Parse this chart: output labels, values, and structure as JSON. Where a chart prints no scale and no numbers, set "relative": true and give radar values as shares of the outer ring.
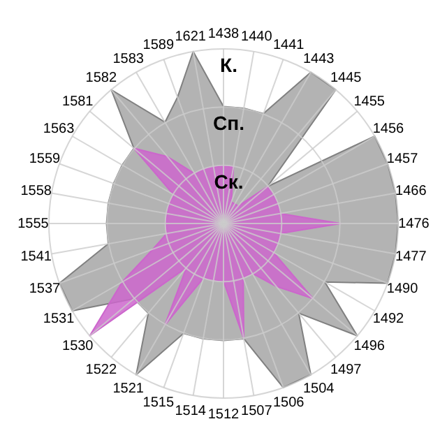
{
  "chart_data": {
    "type": "radar",
    "relative": true,
    "categories": [
      "1438",
      "1440",
      "1441",
      "1443",
      "1445",
      "1455",
      "1456",
      "1457",
      "1466",
      "1476",
      "1477",
      "1490",
      "1492",
      "1496",
      "1497",
      "1504",
      "1506",
      "1507",
      "1512",
      "1514",
      "1515",
      "1521",
      "1522",
      "1530",
      "1531",
      "1537",
      "1541",
      "1555",
      "1558",
      "1559",
      "1563",
      "1581",
      "1582",
      "1583",
      "1589",
      "1621"
    ],
    "series": [
      {
        "color": "#b3b3b3",
        "values": [
          0.67,
          0.67,
          0.67,
          1,
          1,
          0.33,
          1,
          1,
          1,
          1,
          1,
          1,
          0.67,
          1,
          0.67,
          1,
          1,
          0.67,
          0.67,
          0.67,
          0.67,
          1,
          0.67,
          0.67,
          1,
          1,
          0.67,
          0.67,
          0.67,
          0.67,
          0.67,
          0.67,
          1,
          0.67,
          0.77,
          1
        ]
      },
      {
        "color": "#cc66cc",
        "values": [
          0.33,
          0.33,
          0.13,
          0.13,
          0.13,
          0.33,
          0.33,
          0.33,
          0.33,
          0.67,
          0.33,
          0.33,
          0.33,
          0.67,
          0.47,
          0.33,
          0.33,
          0.67,
          0.33,
          0.33,
          0.33,
          0.67,
          0.33,
          1,
          0.67,
          0.43,
          0.33,
          0.33,
          0.33,
          0.33,
          0.33,
          0.67,
          0.5,
          0.33,
          0.33,
          0.33
        ]
      }
    ],
    "annotations": [
      "Ск.",
      "Сп.",
      "К."
    ],
    "grid": true
  }
}
